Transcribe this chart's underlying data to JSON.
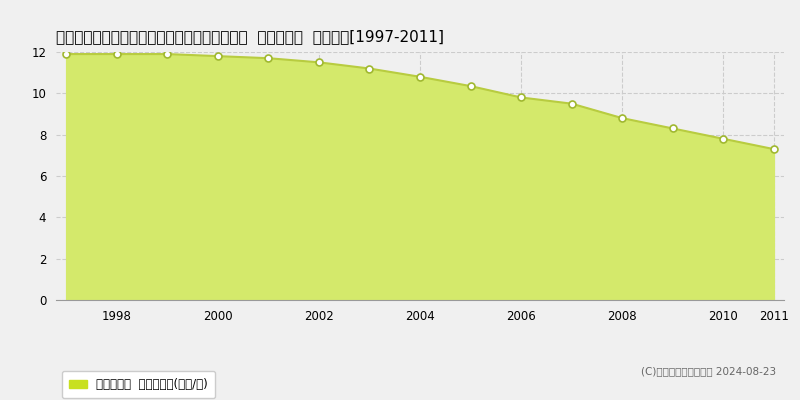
{
  "title": "徳島県勝浦郡勝浦町大字三渓字上川原１５番４  基準地価格  地価推移[1997-2011]",
  "years": [
    1997,
    1998,
    1999,
    2000,
    2001,
    2002,
    2003,
    2004,
    2005,
    2006,
    2007,
    2008,
    2009,
    2010,
    2011
  ],
  "values": [
    11.9,
    11.9,
    11.9,
    11.8,
    11.7,
    11.5,
    11.2,
    10.8,
    10.35,
    9.8,
    9.5,
    8.8,
    8.3,
    7.8,
    7.3
  ],
  "ylim": [
    0,
    12
  ],
  "yticks": [
    0,
    2,
    4,
    6,
    8,
    10,
    12
  ],
  "fill_color": "#d4e96b",
  "line_color": "#b8cc40",
  "marker_color": "#ffffff",
  "marker_edge_color": "#a0b830",
  "bg_color": "#f0f0f0",
  "plot_bg_color": "#f0f0f0",
  "grid_color": "#cccccc",
  "legend_label": "基準地価格  平均坪単価(万円/坪)",
  "legend_color": "#c8e020",
  "copyright_text": "(C)土地価格ドットコム 2024-08-23",
  "xlabel_ticks": [
    1998,
    2000,
    2002,
    2004,
    2006,
    2008,
    2010,
    2011
  ],
  "title_fontsize": 11,
  "axis_fontsize": 8.5
}
